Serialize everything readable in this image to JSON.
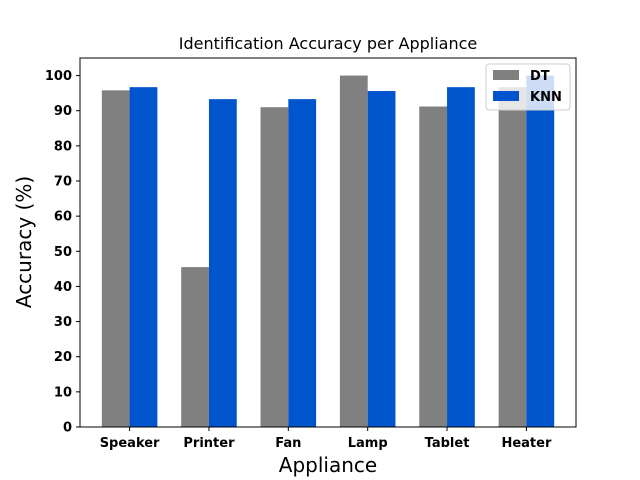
{
  "chart_data": {
    "type": "bar",
    "title": "Identification Accuracy per Appliance",
    "xlabel": "Appliance",
    "ylabel": "Accuracy (%)",
    "categories": [
      "Speaker",
      "Printer",
      "Fan",
      "Lamp",
      "Tablet",
      "Heater"
    ],
    "series": [
      {
        "name": "DT",
        "color": "#808080",
        "values": [
          95.8,
          45.5,
          91.0,
          100.0,
          91.2,
          96.7
        ]
      },
      {
        "name": "KNN",
        "color": "#0055cc",
        "values": [
          96.7,
          93.3,
          93.3,
          95.6,
          96.7,
          100.0
        ]
      }
    ],
    "ylim": [
      0,
      105
    ],
    "yticks": [
      "0",
      "10",
      "20",
      "30",
      "40",
      "50",
      "60",
      "70",
      "80",
      "90",
      "100"
    ],
    "grid": false,
    "legend": "top-right"
  }
}
